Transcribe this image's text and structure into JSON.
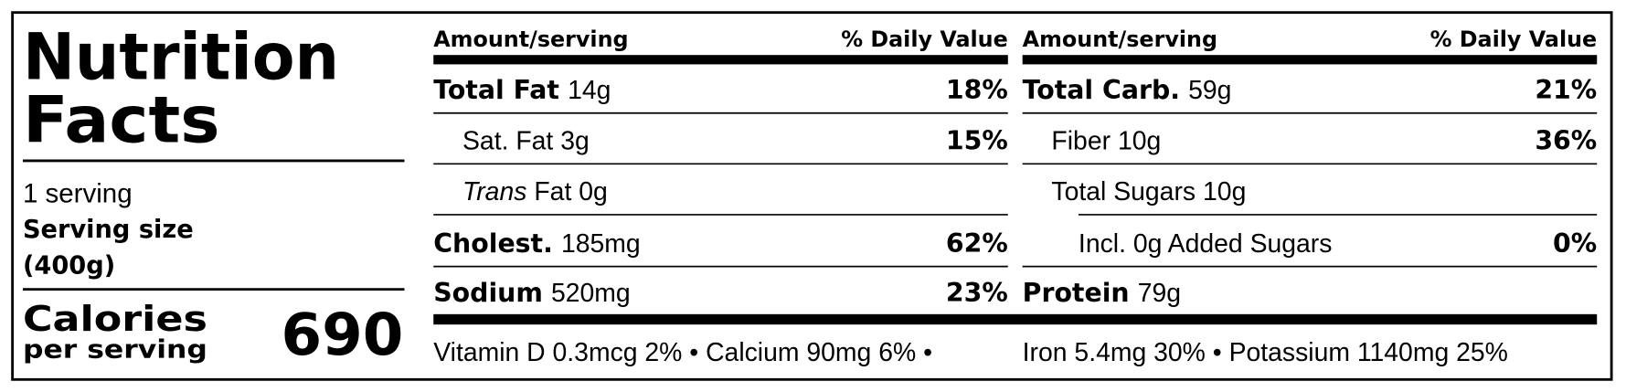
{
  "label": {
    "title": [
      "Nutrition",
      "Facts"
    ],
    "servings": "1 serving",
    "serving_size": [
      "Serving size",
      "(400g)"
    ],
    "calories": {
      "label": "Calories",
      "sublabel": "per serving",
      "value": "690"
    }
  },
  "columns": [
    {
      "header": {
        "amount": "Amount/serving",
        "daily_value": "% Daily Value"
      },
      "rows": [
        {
          "name": "Total Fat",
          "amount": "14g",
          "dv": "18%"
        },
        {
          "name": "Sat. Fat",
          "amount": "3g",
          "dv": "15%"
        },
        {
          "name_italic": "Trans",
          "name": "Fat",
          "amount": "0g"
        },
        {
          "name": "Cholest.",
          "amount": "185mg",
          "dv": "62%"
        },
        {
          "name": "Sodium",
          "amount": "520mg",
          "dv": "23%"
        }
      ]
    },
    {
      "header": {
        "amount": "Amount/serving",
        "daily_value": "% Daily Value"
      },
      "rows": [
        {
          "name": "Total Carb.",
          "amount": "59g",
          "dv": "21%"
        },
        {
          "name": "Fiber",
          "amount": "10g",
          "dv": "36%"
        },
        {
          "name": "Total Sugars",
          "amount": "10g"
        },
        {
          "name": "Incl. 0g Added Sugars",
          "dv": "0%"
        },
        {
          "name": "Protein",
          "amount": "79g"
        }
      ]
    }
  ],
  "footer": [
    "Vitamin D 0.3mcg 2% • Calcium 90mg 6% •",
    "Iron 5.4mg 30% • Potassium 1140mg 25%"
  ]
}
